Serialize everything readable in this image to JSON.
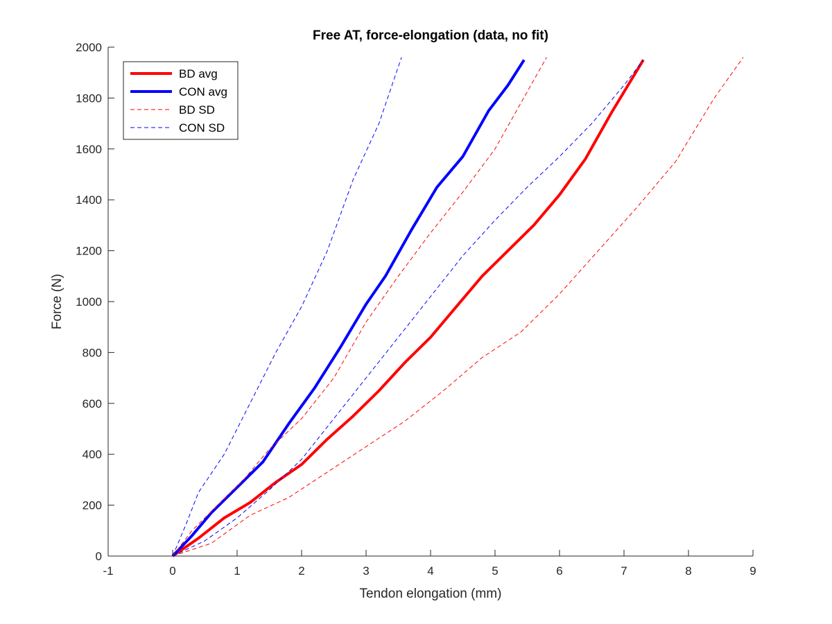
{
  "chart_data": {
    "type": "line",
    "title": "Free AT, force-elongation (data, no fit)",
    "xlabel": "Tendon elongation (mm)",
    "ylabel": "Force (N)",
    "xlim": [
      -1,
      9
    ],
    "ylim": [
      0,
      2000
    ],
    "xticks": [
      -1,
      0,
      1,
      2,
      3,
      4,
      5,
      6,
      7,
      8,
      9
    ],
    "yticks": [
      0,
      200,
      400,
      600,
      800,
      1000,
      1200,
      1400,
      1600,
      1800,
      2000
    ],
    "grid": false,
    "legend_position": "top-left",
    "series": [
      {
        "name": "BD avg",
        "color": "#ff0000",
        "style": "solid",
        "x": [
          0,
          0.4,
          0.8,
          1.2,
          1.6,
          2.0,
          2.4,
          2.8,
          3.2,
          3.6,
          4.0,
          4.4,
          4.8,
          5.2,
          5.6,
          6.0,
          6.4,
          6.8,
          7.3
        ],
        "y": [
          0,
          70,
          150,
          210,
          290,
          360,
          460,
          550,
          650,
          760,
          860,
          980,
          1100,
          1200,
          1300,
          1420,
          1560,
          1740,
          1950
        ]
      },
      {
        "name": "CON avg",
        "color": "#0000ff",
        "style": "solid",
        "x": [
          0,
          0.3,
          0.6,
          1.0,
          1.4,
          1.8,
          2.2,
          2.6,
          3.0,
          3.3,
          3.7,
          4.1,
          4.5,
          4.9,
          5.2,
          5.45
        ],
        "y": [
          0,
          80,
          170,
          270,
          370,
          520,
          660,
          820,
          990,
          1100,
          1280,
          1450,
          1570,
          1750,
          1850,
          1950
        ]
      },
      {
        "name": "BD SD",
        "color": "#ff0000",
        "style": "dashed",
        "x": [
          0,
          0.3,
          0.7,
          1.1,
          1.5,
          2.0,
          2.5,
          3.0,
          3.5,
          4.0,
          4.5,
          5.0,
          5.4,
          5.8
        ],
        "y": [
          0,
          100,
          200,
          300,
          420,
          540,
          700,
          920,
          1100,
          1270,
          1430,
          1600,
          1780,
          1960
        ]
      },
      {
        "name": "BD SD",
        "color": "#ff0000",
        "style": "dashed",
        "x": [
          0,
          0.6,
          1.2,
          1.8,
          2.4,
          3.0,
          3.6,
          4.2,
          4.8,
          5.4,
          6.0,
          6.6,
          7.2,
          7.8,
          8.4,
          8.85
        ],
        "y": [
          0,
          50,
          160,
          230,
          330,
          430,
          530,
          650,
          780,
          880,
          1030,
          1200,
          1370,
          1550,
          1800,
          1960
        ]
      },
      {
        "name": "CON SD",
        "color": "#0000ff",
        "style": "dashed",
        "x": [
          0,
          0.2,
          0.4,
          0.8,
          1.2,
          1.6,
          2.0,
          2.4,
          2.8,
          3.2,
          3.55
        ],
        "y": [
          0,
          120,
          250,
          400,
          600,
          800,
          980,
          1200,
          1480,
          1700,
          1960
        ]
      },
      {
        "name": "CON SD",
        "color": "#0000ff",
        "style": "dashed",
        "x": [
          0,
          0.5,
          1.0,
          1.5,
          2.0,
          2.5,
          3.0,
          3.5,
          4.0,
          4.5,
          5.0,
          5.5,
          6.0,
          6.5,
          7.0,
          7.3
        ],
        "y": [
          0,
          60,
          150,
          260,
          380,
          540,
          700,
          860,
          1020,
          1180,
          1320,
          1450,
          1570,
          1700,
          1850,
          1950
        ]
      }
    ]
  }
}
